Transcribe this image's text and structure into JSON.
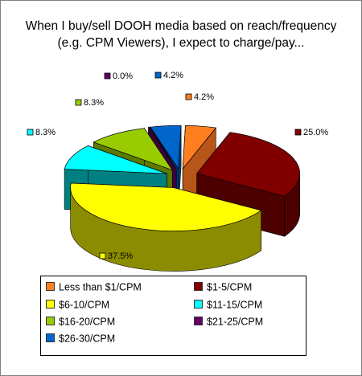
{
  "chart_data": {
    "type": "pie",
    "title_lines": [
      "When I buy/sell DOOH media based on reach/frequency",
      "(e.g. CPM Viewers), I expect to charge/pay..."
    ],
    "legend_position": "bottom",
    "slices": [
      {
        "label": "Less than $1/CPM",
        "value": 4.2,
        "value_label": "4.2%",
        "color": "#ff7f1f",
        "side": "#b8561a"
      },
      {
        "label": "$1-5/CPM",
        "value": 25.0,
        "value_label": "25.0%",
        "color": "#800000",
        "side": "#4d0000"
      },
      {
        "label": "$6-10/CPM",
        "value": 37.5,
        "value_label": "37.5%",
        "color": "#ffff00",
        "side": "#8c8c00"
      },
      {
        "label": "$11-15/CPM",
        "value": 8.3,
        "value_label": "8.3%",
        "color": "#00ffff",
        "side": "#008080"
      },
      {
        "label": "$16-20/CPM",
        "value": 8.3,
        "value_label": "8.3%",
        "color": "#99cc00",
        "side": "#5c7a00"
      },
      {
        "label": "$21-25/CPM",
        "value": 0.0,
        "value_label": "0.0%",
        "color": "#660066",
        "side": "#3d003d"
      },
      {
        "label": "$26-30/CPM",
        "value": 4.2,
        "value_label": "4.2%",
        "color": "#0066cc",
        "side": "#003d7a"
      }
    ]
  }
}
